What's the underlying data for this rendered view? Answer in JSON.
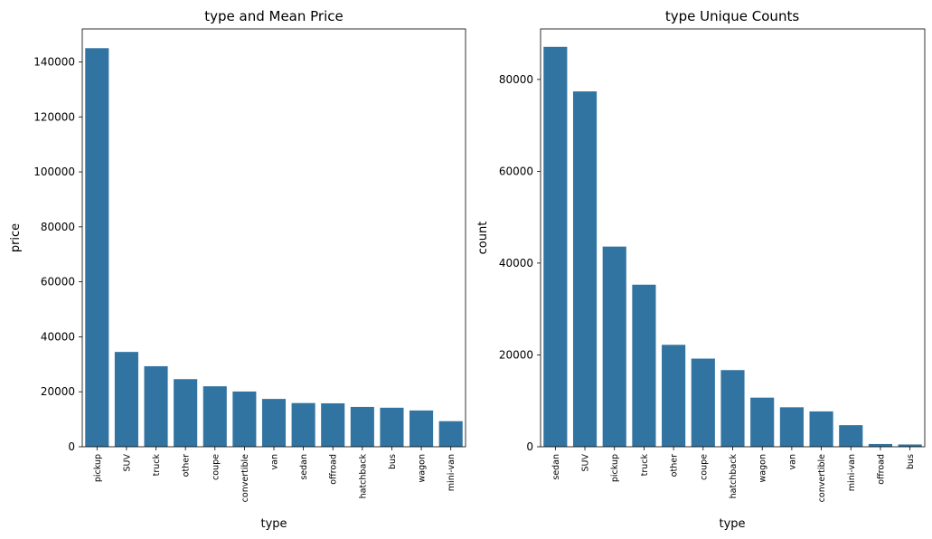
{
  "chart_data": [
    {
      "type": "bar",
      "title": "type and Mean Price",
      "xlabel": "type",
      "ylabel": "price",
      "categories": [
        "pickup",
        "SUV",
        "truck",
        "other",
        "coupe",
        "convertible",
        "van",
        "sedan",
        "offroad",
        "hatchback",
        "bus",
        "wagon",
        "mini-van"
      ],
      "values": [
        145000,
        34500,
        29300,
        24600,
        22000,
        20100,
        17400,
        15900,
        15800,
        14500,
        14200,
        13200,
        9300
      ],
      "ylim": [
        0,
        152000
      ],
      "yticks": [
        0,
        20000,
        40000,
        60000,
        80000,
        100000,
        120000,
        140000
      ],
      "grid": false,
      "bar_color": "#3274a1"
    },
    {
      "type": "bar",
      "title": "type Unique Counts",
      "xlabel": "type",
      "ylabel": "count",
      "categories": [
        "sedan",
        "SUV",
        "pickup",
        "truck",
        "other",
        "coupe",
        "hatchback",
        "wagon",
        "van",
        "convertible",
        "mini-van",
        "offroad",
        "bus"
      ],
      "values": [
        87100,
        77400,
        43600,
        35300,
        22200,
        19200,
        16700,
        10700,
        8600,
        7700,
        4700,
        600,
        500
      ],
      "ylim": [
        0,
        91000
      ],
      "yticks": [
        0,
        20000,
        40000,
        60000,
        80000
      ],
      "grid": false,
      "bar_color": "#3274a1"
    }
  ]
}
